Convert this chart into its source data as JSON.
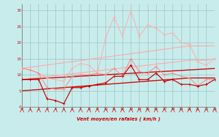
{
  "x": [
    0,
    1,
    2,
    3,
    4,
    5,
    6,
    7,
    8,
    9,
    10,
    11,
    12,
    13,
    14,
    15,
    16,
    17,
    18,
    19,
    20,
    21,
    22,
    23
  ],
  "rafales": [
    12.0,
    11.5,
    10.5,
    9.0,
    8.5,
    8.0,
    12.0,
    13.5,
    13.0,
    10.5,
    21.5,
    28.0,
    22.0,
    30.0,
    22.0,
    25.5,
    24.5,
    22.5,
    23.0,
    20.0,
    19.5,
    14.0,
    13.0,
    15.0
  ],
  "moyen_jagged": [
    12.0,
    11.5,
    10.5,
    6.0,
    5.5,
    5.5,
    9.5,
    10.0,
    10.0,
    10.5,
    10.0,
    12.0,
    9.5,
    15.0,
    11.0,
    10.5,
    12.5,
    10.0,
    10.5,
    9.5,
    9.0,
    6.5,
    8.5,
    8.5
  ],
  "moyen_dark": [
    8.5,
    8.5,
    8.5,
    2.5,
    2.0,
    1.0,
    6.0,
    6.0,
    6.5,
    7.0,
    7.5,
    9.5,
    9.5,
    13.0,
    8.5,
    8.5,
    10.5,
    8.0,
    8.5,
    7.0,
    7.0,
    6.5,
    7.0,
    8.5
  ],
  "slope_upper": [
    12.0,
    12.35,
    12.7,
    13.05,
    13.4,
    13.75,
    14.1,
    14.45,
    14.8,
    15.15,
    15.5,
    15.85,
    16.2,
    16.55,
    16.9,
    17.25,
    17.6,
    17.95,
    18.3,
    18.65,
    19.0,
    19.0,
    19.0,
    19.0
  ],
  "slope_mid_light": [
    8.5,
    8.8,
    9.1,
    9.4,
    9.7,
    10.0,
    10.3,
    10.6,
    10.9,
    11.2,
    11.5,
    11.8,
    12.1,
    12.4,
    12.7,
    13.0,
    13.3,
    13.6,
    13.9,
    14.2,
    14.5,
    14.5,
    14.5,
    15.0
  ],
  "slope_mid_dark": [
    8.5,
    8.65,
    8.8,
    8.95,
    9.1,
    9.25,
    9.4,
    9.55,
    9.7,
    9.85,
    10.0,
    10.15,
    10.3,
    10.45,
    10.6,
    10.75,
    10.9,
    11.05,
    11.2,
    11.35,
    11.5,
    11.65,
    11.8,
    11.95
  ],
  "slope_lower": [
    5.0,
    5.2,
    5.4,
    5.6,
    5.8,
    6.0,
    6.2,
    6.4,
    6.6,
    6.8,
    7.0,
    7.2,
    7.4,
    7.6,
    7.8,
    8.0,
    8.2,
    8.4,
    8.6,
    8.8,
    9.0,
    9.0,
    9.0,
    9.0
  ],
  "bg_color": "#c8ecec",
  "grid_color": "#a0c8c8",
  "color_light_pink": "#ffaaaa",
  "color_mid_pink": "#ff8080",
  "color_dark_red": "#cc0000",
  "xlabel": "Vent moyen/en rafales ( km/h )",
  "ylim": [
    0,
    32
  ],
  "xlim": [
    0,
    23
  ],
  "yticks": [
    0,
    5,
    10,
    15,
    20,
    25,
    30
  ],
  "xticks": [
    0,
    1,
    2,
    3,
    4,
    5,
    6,
    7,
    8,
    9,
    10,
    11,
    12,
    13,
    14,
    15,
    16,
    17,
    18,
    19,
    20,
    21,
    22,
    23
  ]
}
